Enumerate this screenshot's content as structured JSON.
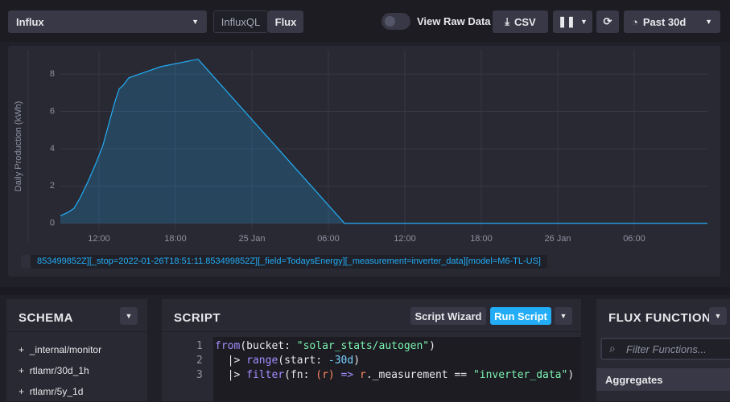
{
  "toolbar": {
    "source": "Influx",
    "modes": [
      "InfluxQL",
      "Flux"
    ],
    "raw_toggle": "View Raw Data",
    "csv": "CSV",
    "range": "Past 30d"
  },
  "chart_data": {
    "type": "area",
    "y_label": "Daily Production (kWh)",
    "x": [
      8.97,
      9.6,
      10.04,
      10.55,
      11.18,
      11.81,
      12.32,
      12.76,
      13.2,
      13.58,
      13.9,
      14.34,
      15.6,
      16.86,
      19.77,
      31.27,
      40,
      50,
      59.75
    ],
    "series": [
      {
        "name": "853499852Z][_stop=2022-01-26T18:51:11.853499852Z][_field=TodaysEnergy][_measurement=inverter_data][model=M6-TL-US]",
        "color": "#22adf6",
        "values": [
          0.4,
          0.6,
          0.8,
          1.4,
          2.3,
          3.3,
          4.2,
          5.3,
          6.4,
          7.2,
          7.4,
          7.8,
          8.1,
          8.4,
          8.8,
          0,
          0,
          0,
          0
        ]
      }
    ],
    "xlim": [
      8.97,
      59.75
    ],
    "ylim": [
      -0.4,
      9.3
    ],
    "xticks": [
      {
        "value": 12,
        "label": "12:00"
      },
      {
        "value": 18,
        "label": "18:00"
      },
      {
        "value": 24,
        "label": "25 Jan"
      },
      {
        "value": 30,
        "label": "06:00"
      },
      {
        "value": 36,
        "label": "12:00"
      },
      {
        "value": 42,
        "label": "18:00"
      },
      {
        "value": 48,
        "label": "26 Jan"
      },
      {
        "value": 54,
        "label": "06:00"
      }
    ],
    "yticks": [
      0,
      2,
      4,
      6,
      8
    ],
    "grid": true
  },
  "schema": {
    "title": "SCHEMA",
    "items": [
      "_internal/monitor",
      "rtlamr/30d_1h",
      "rtlamr/5y_1d"
    ]
  },
  "script": {
    "title": "SCRIPT",
    "wizard": "Script Wizard",
    "run": "Run Script",
    "line_numbers": [
      "1",
      "2",
      "3"
    ],
    "lines": [
      [
        "from",
        "(bucket: ",
        "\"solar_stats/autogen\"",
        ")"
      ],
      [
        "  |> ",
        "range",
        "(start: ",
        "-30d",
        ")"
      ],
      [
        "  |> ",
        "filter",
        "(fn: ",
        "(r)",
        " => ",
        "r",
        "._measurement == ",
        "\"inverter_data\"",
        ")"
      ]
    ]
  },
  "functions": {
    "title": "FLUX FUNCTIONS",
    "search": "Filter Functions...",
    "group": "Aggregates"
  }
}
